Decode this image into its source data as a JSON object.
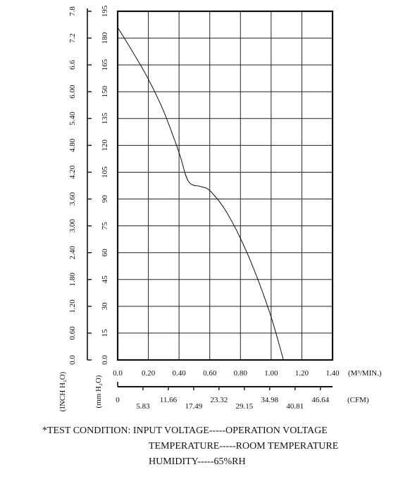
{
  "chart_data": {
    "type": "line",
    "title": "",
    "x_primary": {
      "label": "(M³/MIN.)",
      "range": [
        0,
        1.4
      ],
      "ticks": [
        "0.0",
        "0.20",
        "0.40",
        "0.60",
        "0.80",
        "1.00",
        "1.20",
        "1.40"
      ]
    },
    "x_secondary": {
      "label": "(CFM)",
      "range": [
        0,
        49.44
      ],
      "ticks": [
        "0",
        "5.83",
        "11.66",
        "17.49",
        "23.32",
        "29.15",
        "34.98",
        "40.81",
        "46.64"
      ]
    },
    "y_left_outer": {
      "label": "(INCH H₂O)",
      "range": [
        0,
        7.8
      ],
      "ticks": [
        "0.0",
        "0.60",
        "1.20",
        "1.80",
        "2.40",
        "3.00",
        "3.60",
        "4.20",
        "4.80",
        "5.40",
        "6.00",
        "6.6",
        "7.2",
        "7.8"
      ]
    },
    "y_left_inner": {
      "label": "(mm H₂O)",
      "range": [
        0,
        195
      ],
      "ticks": [
        "0.0",
        "15",
        "30",
        "45",
        "60",
        "75",
        "90",
        "105",
        "120",
        "135",
        "150",
        "165",
        "180",
        "195"
      ]
    },
    "grid": true,
    "series": [
      {
        "name": "",
        "x_unit": "M³/MIN.",
        "y_unit": "mm H₂O",
        "points": [
          [
            0.0,
            186
          ],
          [
            0.1,
            172
          ],
          [
            0.2,
            157
          ],
          [
            0.3,
            139
          ],
          [
            0.4,
            116
          ],
          [
            0.46,
            100
          ],
          [
            0.54,
            97
          ],
          [
            0.58,
            96
          ],
          [
            0.62,
            93
          ],
          [
            0.7,
            84
          ],
          [
            0.8,
            68
          ],
          [
            0.9,
            48
          ],
          [
            1.0,
            24
          ],
          [
            1.08,
            0
          ]
        ]
      }
    ]
  },
  "footnote": {
    "line1": "*TEST CONDITION: INPUT VOLTAGE-----OPERATION VOLTAGE",
    "line2": "TEMPERATURE-----ROOM TEMPERATURE",
    "line3": "HUMIDITY-----65%RH"
  }
}
